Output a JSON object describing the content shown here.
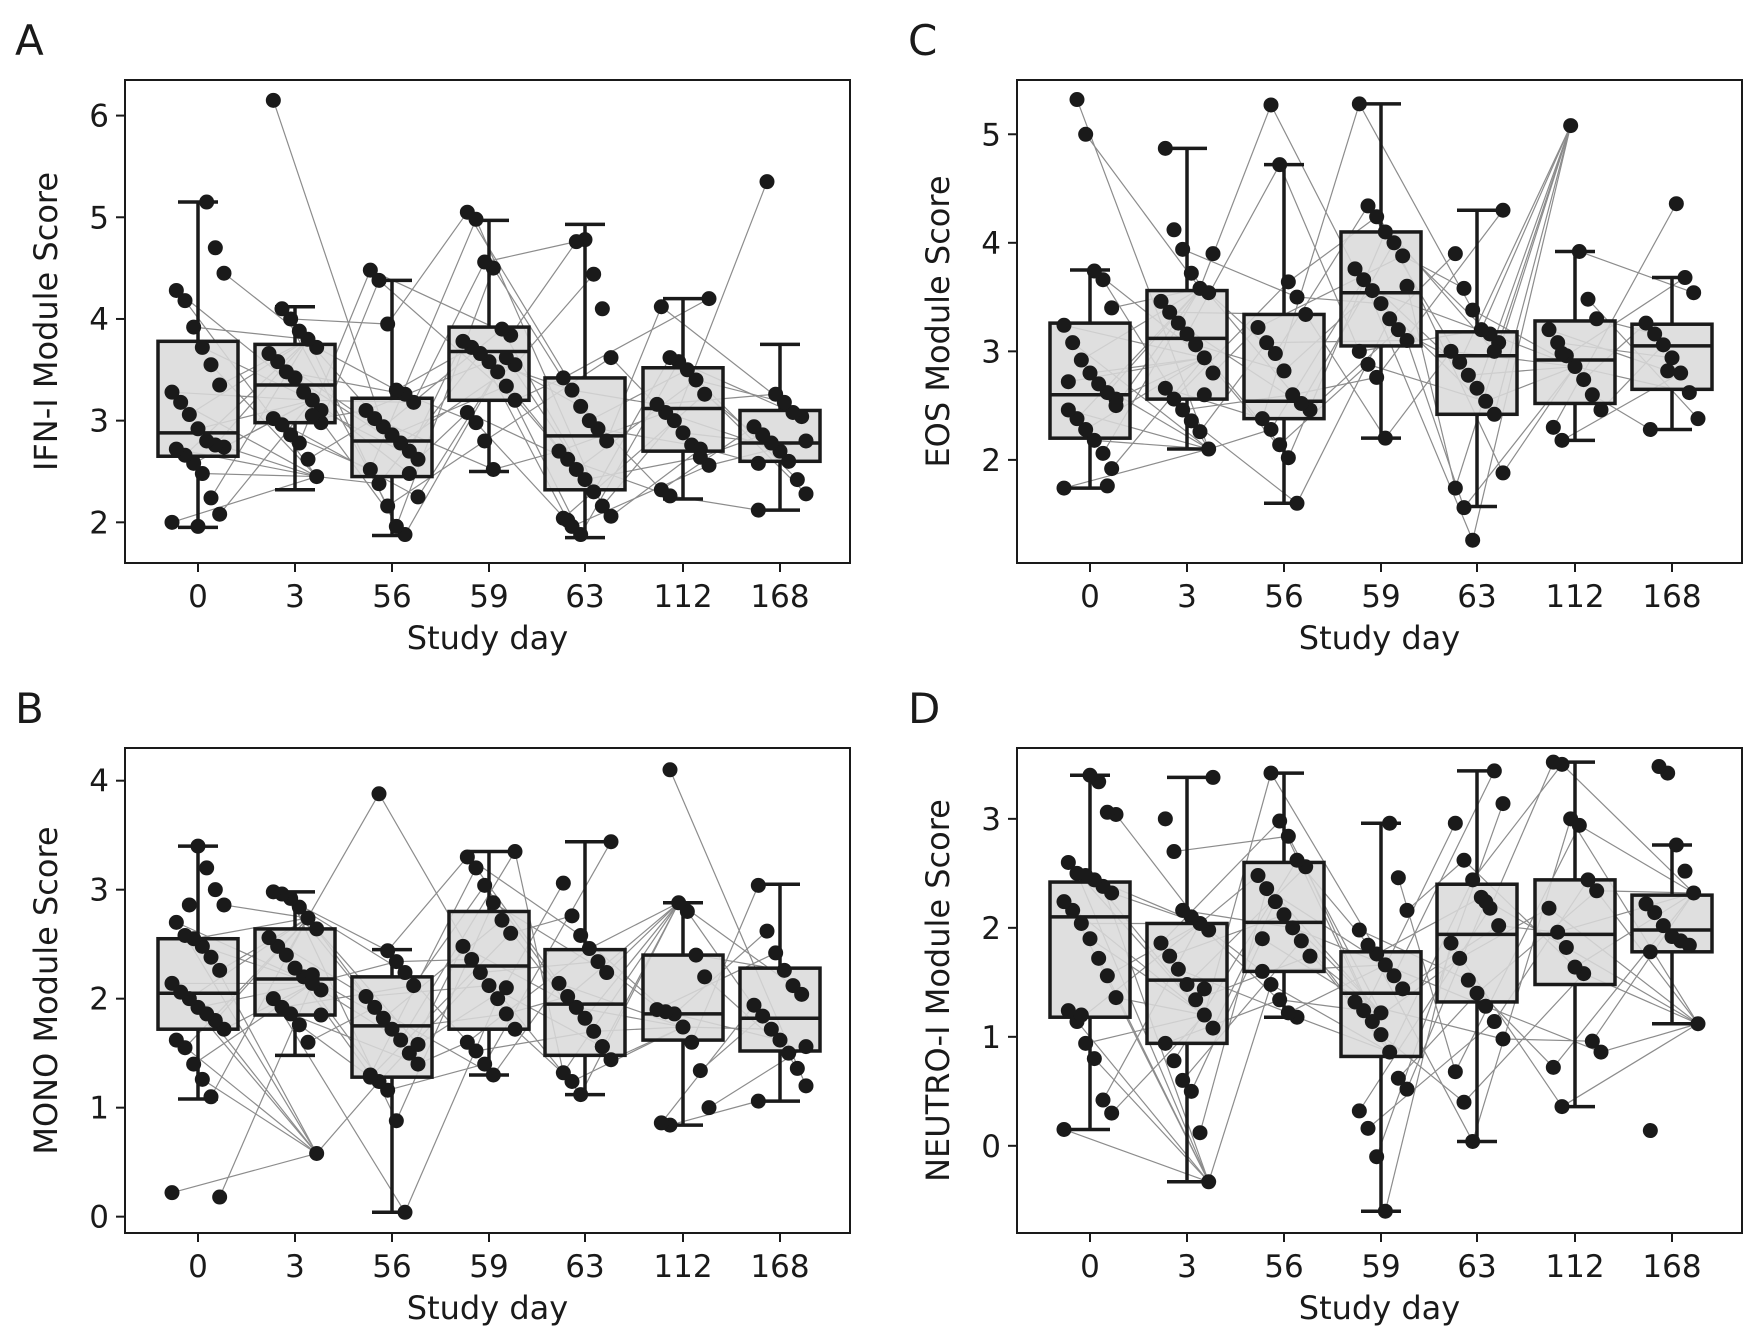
{
  "figure": {
    "style": {
      "box_fill": "#d9d9d9",
      "box_stroke": "#1a1a1a",
      "dot_color": "#1a1a1a",
      "line_color": "#8c8c8c"
    }
  },
  "chart_data": [
    {
      "panel": "A",
      "type": "box",
      "xlabel": "Study day",
      "ylabel": "IFN-I Module Score",
      "categories": [
        "0",
        "3",
        "56",
        "59",
        "63",
        "112",
        "168"
      ],
      "ylim": [
        1.6,
        6.35
      ],
      "yticks": [
        2,
        3,
        4,
        5,
        6
      ],
      "boxes": [
        {
          "q1": 2.65,
          "median": 2.88,
          "q3": 3.78,
          "whisker_low": 1.95,
          "whisker_high": 5.15
        },
        {
          "q1": 2.98,
          "median": 3.35,
          "q3": 3.75,
          "whisker_low": 2.32,
          "whisker_high": 4.12
        },
        {
          "q1": 2.45,
          "median": 2.8,
          "q3": 3.22,
          "whisker_low": 1.87,
          "whisker_high": 4.38
        },
        {
          "q1": 3.2,
          "median": 3.68,
          "q3": 3.92,
          "whisker_low": 2.5,
          "whisker_high": 4.97
        },
        {
          "q1": 2.32,
          "median": 2.85,
          "q3": 3.42,
          "whisker_low": 1.85,
          "whisker_high": 4.93
        },
        {
          "q1": 2.7,
          "median": 3.12,
          "q3": 3.52,
          "whisker_low": 2.23,
          "whisker_high": 4.2
        },
        {
          "q1": 2.6,
          "median": 2.78,
          "q3": 3.1,
          "whisker_low": 2.12,
          "whisker_high": 3.75
        }
      ],
      "points": [
        [
          2.0,
          2.08,
          2.24,
          2.48,
          2.58,
          2.66,
          2.72,
          2.74,
          2.76,
          2.8,
          2.92,
          3.06,
          3.18,
          3.28,
          3.35,
          3.55,
          3.72,
          3.92,
          4.18,
          4.28,
          4.45,
          4.7,
          5.15,
          1.96
        ],
        [
          2.45,
          2.62,
          2.78,
          2.86,
          2.96,
          3.02,
          3.1,
          3.2,
          3.28,
          3.42,
          3.48,
          3.58,
          3.66,
          3.72,
          3.8,
          3.88,
          4.0,
          4.1,
          6.15,
          2.98,
          3.05
        ],
        [
          1.88,
          1.96,
          2.16,
          2.38,
          2.52,
          2.62,
          2.7,
          2.78,
          2.86,
          2.94,
          3.02,
          3.1,
          3.18,
          3.26,
          3.3,
          3.95,
          4.38,
          4.48,
          2.25,
          2.48
        ],
        [
          2.52,
          2.8,
          2.98,
          3.08,
          3.2,
          3.34,
          3.48,
          3.58,
          3.66,
          3.72,
          3.78,
          3.84,
          3.9,
          4.5,
          4.56,
          4.98,
          5.05,
          3.55,
          3.62
        ],
        [
          1.88,
          1.96,
          2.04,
          2.06,
          2.16,
          2.3,
          2.42,
          2.52,
          2.62,
          2.7,
          2.8,
          2.92,
          3.0,
          3.14,
          3.3,
          3.42,
          3.62,
          4.1,
          4.44,
          4.78,
          4.76,
          2.02
        ],
        [
          2.26,
          2.32,
          2.56,
          2.64,
          2.76,
          2.88,
          3.0,
          3.08,
          3.16,
          3.26,
          3.4,
          3.5,
          3.58,
          3.62,
          4.12,
          4.2,
          2.72
        ],
        [
          2.12,
          2.28,
          2.42,
          2.6,
          2.7,
          2.78,
          2.86,
          2.94,
          3.04,
          3.08,
          3.18,
          3.26,
          5.35,
          2.58,
          2.8
        ]
      ]
    },
    {
      "panel": "B",
      "type": "box",
      "xlabel": "Study day",
      "ylabel": "MONO Module Score",
      "categories": [
        "0",
        "3",
        "56",
        "59",
        "63",
        "112",
        "168"
      ],
      "ylim": [
        -0.15,
        4.3
      ],
      "yticks": [
        0,
        1,
        2,
        3,
        4
      ],
      "boxes": [
        {
          "q1": 1.72,
          "median": 2.05,
          "q3": 2.55,
          "whisker_low": 1.08,
          "whisker_high": 3.4
        },
        {
          "q1": 1.85,
          "median": 2.18,
          "q3": 2.64,
          "whisker_low": 1.48,
          "whisker_high": 2.98
        },
        {
          "q1": 1.28,
          "median": 1.75,
          "q3": 2.2,
          "whisker_low": 0.04,
          "whisker_high": 2.45
        },
        {
          "q1": 1.72,
          "median": 2.3,
          "q3": 2.8,
          "whisker_low": 1.3,
          "whisker_high": 3.35
        },
        {
          "q1": 1.48,
          "median": 1.95,
          "q3": 2.45,
          "whisker_low": 1.12,
          "whisker_high": 3.44
        },
        {
          "q1": 1.62,
          "median": 1.86,
          "q3": 2.4,
          "whisker_low": 0.84,
          "whisker_high": 2.88
        },
        {
          "q1": 1.52,
          "median": 1.82,
          "q3": 2.28,
          "whisker_low": 1.06,
          "whisker_high": 3.05
        }
      ],
      "points": [
        [
          0.22,
          0.18,
          1.1,
          1.26,
          1.4,
          1.55,
          1.62,
          1.72,
          1.8,
          1.86,
          1.92,
          2.0,
          2.06,
          2.14,
          2.26,
          2.38,
          2.48,
          2.55,
          2.58,
          2.7,
          2.86,
          3.0,
          3.2,
          3.4,
          2.86
        ],
        [
          0.58,
          1.6,
          1.76,
          1.86,
          1.92,
          2.0,
          2.08,
          2.14,
          2.2,
          2.28,
          2.4,
          2.48,
          2.56,
          2.64,
          2.74,
          2.84,
          2.92,
          2.96,
          2.98,
          1.85,
          2.22
        ],
        [
          0.04,
          0.88,
          1.16,
          1.24,
          1.3,
          1.4,
          1.5,
          1.62,
          1.72,
          1.82,
          1.92,
          2.02,
          2.12,
          2.24,
          2.34,
          2.44,
          3.88,
          1.28,
          1.58
        ],
        [
          1.3,
          1.4,
          1.52,
          1.6,
          1.72,
          1.86,
          2.0,
          2.12,
          2.24,
          2.36,
          2.48,
          2.6,
          2.72,
          2.88,
          3.04,
          3.2,
          3.3,
          3.35,
          2.1
        ],
        [
          1.12,
          1.24,
          1.32,
          1.44,
          1.56,
          1.7,
          1.82,
          1.92,
          2.02,
          2.14,
          2.24,
          2.34,
          2.46,
          2.58,
          2.76,
          3.06,
          3.44,
          1.56
        ],
        [
          0.84,
          0.86,
          1.0,
          1.34,
          1.6,
          1.74,
          1.86,
          1.88,
          1.9,
          2.2,
          2.4,
          2.8,
          2.88,
          4.1
        ],
        [
          1.06,
          1.2,
          1.36,
          1.5,
          1.62,
          1.72,
          1.84,
          1.94,
          2.04,
          2.12,
          2.26,
          2.42,
          2.62,
          3.04,
          1.56
        ]
      ]
    },
    {
      "panel": "C",
      "type": "box",
      "xlabel": "Study day",
      "ylabel": "EOS Module Score",
      "categories": [
        "0",
        "3",
        "56",
        "59",
        "63",
        "112",
        "168"
      ],
      "ylim": [
        1.05,
        5.5
      ],
      "yticks": [
        2,
        3,
        4,
        5
      ],
      "boxes": [
        {
          "q1": 2.2,
          "median": 2.6,
          "q3": 3.26,
          "whisker_low": 1.74,
          "whisker_high": 3.75
        },
        {
          "q1": 2.56,
          "median": 3.12,
          "q3": 3.56,
          "whisker_low": 2.1,
          "whisker_high": 4.87
        },
        {
          "q1": 2.38,
          "median": 2.54,
          "q3": 3.34,
          "whisker_low": 1.6,
          "whisker_high": 4.72
        },
        {
          "q1": 3.05,
          "median": 3.54,
          "q3": 4.1,
          "whisker_low": 2.2,
          "whisker_high": 5.28
        },
        {
          "q1": 2.42,
          "median": 2.96,
          "q3": 3.18,
          "whisker_low": 1.57,
          "whisker_high": 4.3
        },
        {
          "q1": 2.52,
          "median": 2.92,
          "q3": 3.28,
          "whisker_low": 2.18,
          "whisker_high": 3.92
        },
        {
          "q1": 2.65,
          "median": 3.05,
          "q3": 3.25,
          "whisker_low": 2.28,
          "whisker_high": 3.68
        }
      ],
      "points": [
        [
          1.74,
          1.92,
          2.06,
          2.18,
          2.28,
          2.38,
          2.46,
          2.56,
          2.62,
          2.7,
          2.8,
          2.92,
          3.08,
          3.24,
          3.4,
          3.66,
          3.74,
          5.0,
          5.32,
          2.72,
          2.5,
          1.76
        ],
        [
          2.1,
          2.26,
          2.36,
          2.46,
          2.56,
          2.66,
          2.8,
          2.94,
          3.06,
          3.16,
          3.26,
          3.36,
          3.46,
          3.54,
          3.58,
          3.72,
          3.94,
          4.12,
          4.87,
          3.9,
          2.6
        ],
        [
          1.6,
          2.02,
          2.14,
          2.28,
          2.38,
          2.46,
          2.52,
          2.6,
          2.82,
          2.98,
          3.08,
          3.22,
          3.34,
          3.5,
          3.64,
          4.72,
          5.27
        ],
        [
          2.2,
          2.76,
          2.88,
          3.0,
          3.1,
          3.2,
          3.3,
          3.44,
          3.56,
          3.66,
          3.76,
          3.88,
          4.0,
          4.1,
          4.24,
          4.34,
          5.28,
          3.6
        ],
        [
          1.26,
          1.56,
          1.74,
          1.88,
          2.42,
          2.54,
          2.66,
          2.78,
          2.9,
          3.0,
          3.08,
          3.16,
          3.2,
          3.38,
          3.58,
          3.9,
          4.3,
          3.0
        ],
        [
          2.18,
          2.3,
          2.46,
          2.6,
          2.74,
          2.86,
          2.96,
          3.08,
          3.2,
          3.3,
          3.48,
          3.92,
          5.08,
          2.98
        ],
        [
          2.28,
          2.38,
          2.62,
          2.8,
          2.94,
          3.06,
          3.16,
          3.26,
          3.54,
          3.68,
          4.36,
          2.82
        ]
      ]
    },
    {
      "panel": "D",
      "type": "box",
      "xlabel": "Study day",
      "ylabel": "NEUTRO-I Module Score",
      "categories": [
        "0",
        "3",
        "56",
        "59",
        "63",
        "112",
        "168"
      ],
      "ylim": [
        -0.8,
        3.65
      ],
      "yticks": [
        0,
        1,
        2,
        3
      ],
      "boxes": [
        {
          "q1": 1.18,
          "median": 2.1,
          "q3": 2.42,
          "whisker_low": 0.15,
          "whisker_high": 3.4
        },
        {
          "q1": 0.94,
          "median": 1.52,
          "q3": 2.04,
          "whisker_low": -0.33,
          "whisker_high": 3.38
        },
        {
          "q1": 1.6,
          "median": 2.05,
          "q3": 2.6,
          "whisker_low": 1.18,
          "whisker_high": 3.42
        },
        {
          "q1": 0.82,
          "median": 1.4,
          "q3": 1.78,
          "whisker_low": -0.6,
          "whisker_high": 2.96
        },
        {
          "q1": 1.32,
          "median": 1.94,
          "q3": 2.4,
          "whisker_low": 0.04,
          "whisker_high": 3.44
        },
        {
          "q1": 1.48,
          "median": 1.94,
          "q3": 2.44,
          "whisker_low": 0.36,
          "whisker_high": 3.52
        },
        {
          "q1": 1.78,
          "median": 1.98,
          "q3": 2.3,
          "whisker_low": 1.12,
          "whisker_high": 2.76
        }
      ],
      "points": [
        [
          0.15,
          0.3,
          0.42,
          0.8,
          0.94,
          1.14,
          1.24,
          1.36,
          1.56,
          1.72,
          1.9,
          2.04,
          2.16,
          2.24,
          2.32,
          2.38,
          2.44,
          2.48,
          2.5,
          2.6,
          3.04,
          3.06,
          3.34,
          3.4,
          1.2
        ],
        [
          -0.33,
          0.12,
          0.5,
          0.6,
          0.78,
          0.94,
          1.08,
          1.2,
          1.34,
          1.48,
          1.62,
          1.74,
          1.86,
          1.98,
          2.04,
          2.1,
          2.16,
          2.7,
          3.0,
          3.38,
          1.44
        ],
        [
          1.18,
          1.22,
          1.34,
          1.48,
          1.6,
          1.74,
          1.88,
          2.0,
          2.12,
          2.24,
          2.36,
          2.48,
          2.56,
          2.62,
          2.84,
          2.98,
          3.42,
          1.9
        ],
        [
          -0.6,
          -0.1,
          0.16,
          0.32,
          0.52,
          0.62,
          0.86,
          1.02,
          1.14,
          1.24,
          1.32,
          1.44,
          1.56,
          1.66,
          1.76,
          1.84,
          1.98,
          2.16,
          2.46,
          2.96,
          1.22
        ],
        [
          0.04,
          0.4,
          0.68,
          0.98,
          1.14,
          1.28,
          1.4,
          1.52,
          1.72,
          1.86,
          2.02,
          2.18,
          2.28,
          2.44,
          2.62,
          2.96,
          3.14,
          3.44,
          2.24
        ],
        [
          0.36,
          0.72,
          0.86,
          0.96,
          1.58,
          1.64,
          1.82,
          1.96,
          2.18,
          2.34,
          2.44,
          2.94,
          3.0,
          3.5,
          3.52
        ],
        [
          0.14,
          1.12,
          1.84,
          1.88,
          1.92,
          2.02,
          2.14,
          2.22,
          2.32,
          2.52,
          2.76,
          3.42,
          3.48,
          1.78
        ]
      ]
    }
  ]
}
